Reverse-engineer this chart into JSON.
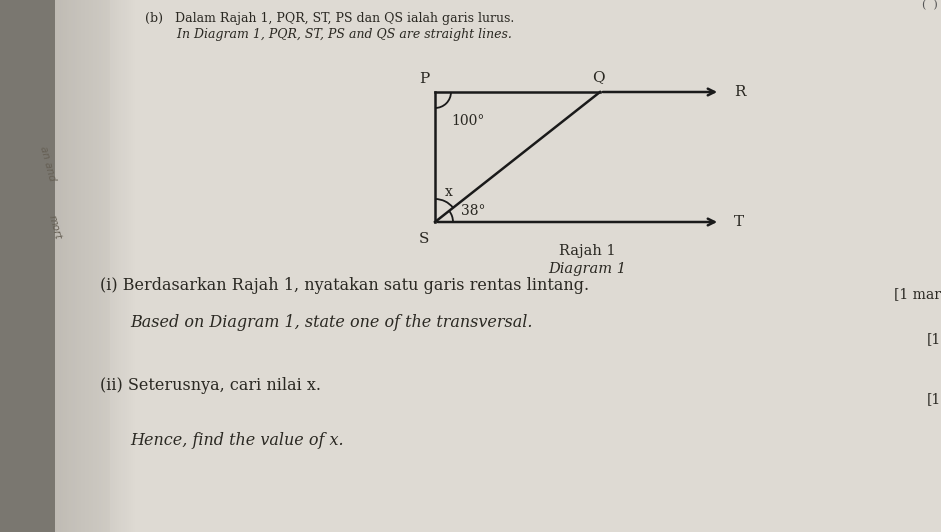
{
  "bg_light": "#e8e5de",
  "bg_mid": "#d5d1c8",
  "bg_left_strip": "#9a9690",
  "title_text": "(b)   Dalam Rajah 1, PQR, ST, PS dan QS ialah garis lurus.",
  "title_text2": "        In Diagram 1, PQR, ST, PS and QS are straight lines.",
  "diagram_title1": "Rajah 1",
  "diagram_title2": "Diagram 1",
  "angle_100": "100°",
  "angle_38": "38°",
  "angle_x": "x",
  "label_P": "P",
  "label_Q": "Q",
  "label_R": "R",
  "label_S": "S",
  "label_T": "T",
  "q1_malay": "(i) Berdasarkan Rajah 1, nyatakan satu garis rentas lintang.",
  "q1_mark": "[1 mar",
  "q1_english": "Based on Diagram 1, state one of the transversal.",
  "q1_mark2": "[1",
  "q2_malay": "(ii) Seterusnya, cari nilai x.",
  "q2_mark": "[1",
  "q2_english": "Hence, find the value of x.",
  "side_text1": "an and",
  "side_text2": "mort",
  "line_color": "#1a1a1a",
  "text_color": "#2a2822"
}
